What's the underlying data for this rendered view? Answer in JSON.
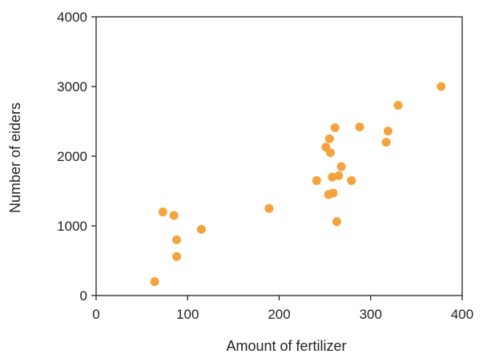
{
  "chart_data": {
    "type": "scatter",
    "title": "",
    "xlabel": "Amount of fertilizer",
    "ylabel": "Number of eiders",
    "xlim": [
      0,
      400
    ],
    "ylim": [
      0,
      4000
    ],
    "x_ticks": [
      0,
      100,
      200,
      300,
      400
    ],
    "y_ticks": [
      0,
      1000,
      2000,
      3000,
      4000
    ],
    "x_tick_labels": [
      "0",
      "100",
      "200",
      "300",
      "400"
    ],
    "y_tick_labels": [
      "0",
      "1000",
      "2000",
      "3000",
      "4000"
    ],
    "grid": false,
    "legend": "none",
    "marker_color": "#f5a33c",
    "axis_color": "#222222",
    "series": [
      {
        "points": [
          {
            "x": 64,
            "y": 200
          },
          {
            "x": 73,
            "y": 1200
          },
          {
            "x": 85,
            "y": 1150
          },
          {
            "x": 88,
            "y": 800
          },
          {
            "x": 88,
            "y": 560
          },
          {
            "x": 115,
            "y": 950
          },
          {
            "x": 189,
            "y": 1250
          },
          {
            "x": 241,
            "y": 1650
          },
          {
            "x": 251,
            "y": 2130
          },
          {
            "x": 254,
            "y": 1450
          },
          {
            "x": 255,
            "y": 2250
          },
          {
            "x": 256,
            "y": 2050
          },
          {
            "x": 258,
            "y": 1700
          },
          {
            "x": 259,
            "y": 1470
          },
          {
            "x": 261,
            "y": 2410
          },
          {
            "x": 263,
            "y": 1060
          },
          {
            "x": 265,
            "y": 1720
          },
          {
            "x": 268,
            "y": 1850
          },
          {
            "x": 279,
            "y": 1650
          },
          {
            "x": 288,
            "y": 2420
          },
          {
            "x": 317,
            "y": 2200
          },
          {
            "x": 319,
            "y": 2360
          },
          {
            "x": 330,
            "y": 2730
          },
          {
            "x": 377,
            "y": 3000
          }
        ]
      }
    ]
  }
}
